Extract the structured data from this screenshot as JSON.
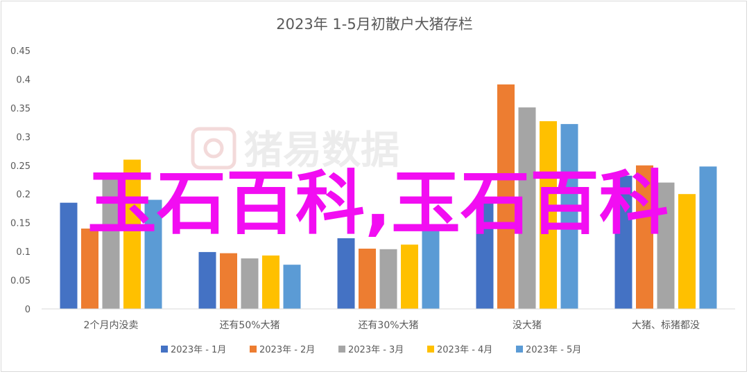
{
  "chart_data": {
    "type": "bar",
    "title": "2023年 1-5月初散户大猪存栏",
    "categories": [
      "2个月内没卖",
      "还有50%大猪",
      "还有30%大猪",
      "没大猪",
      "大猪、标猪都没"
    ],
    "series": [
      {
        "name": "2023年 - 1月",
        "color": "#4472c4",
        "values": [
          0.185,
          0.099,
          0.123,
          0.188,
          0.232
        ]
      },
      {
        "name": "2023年 - 2月",
        "color": "#ed7d31",
        "values": [
          0.14,
          0.097,
          0.105,
          0.391,
          0.25
        ]
      },
      {
        "name": "2023年 - 3月",
        "color": "#a5a5a5",
        "values": [
          0.233,
          0.088,
          0.104,
          0.351,
          0.22
        ]
      },
      {
        "name": "2023年 - 4月",
        "color": "#ffc000",
        "values": [
          0.26,
          0.093,
          0.112,
          0.327,
          0.2
        ]
      },
      {
        "name": "2023年 - 5月",
        "color": "#5b9bd5",
        "values": [
          0.19,
          0.077,
          0.147,
          0.322,
          0.248
        ]
      }
    ],
    "y_ticks": [
      "0",
      "0.05",
      "0.1",
      "0.15",
      "0.2",
      "0.25",
      "0.3",
      "0.35",
      "0.4",
      "0.45"
    ],
    "ylim": [
      0,
      0.45
    ],
    "grid": false,
    "legend_position": "bottom"
  },
  "watermark": {
    "text": "猪易数据",
    "icon": "pig-logo-icon"
  },
  "overlay_text": "玉石百科,玉石百科"
}
